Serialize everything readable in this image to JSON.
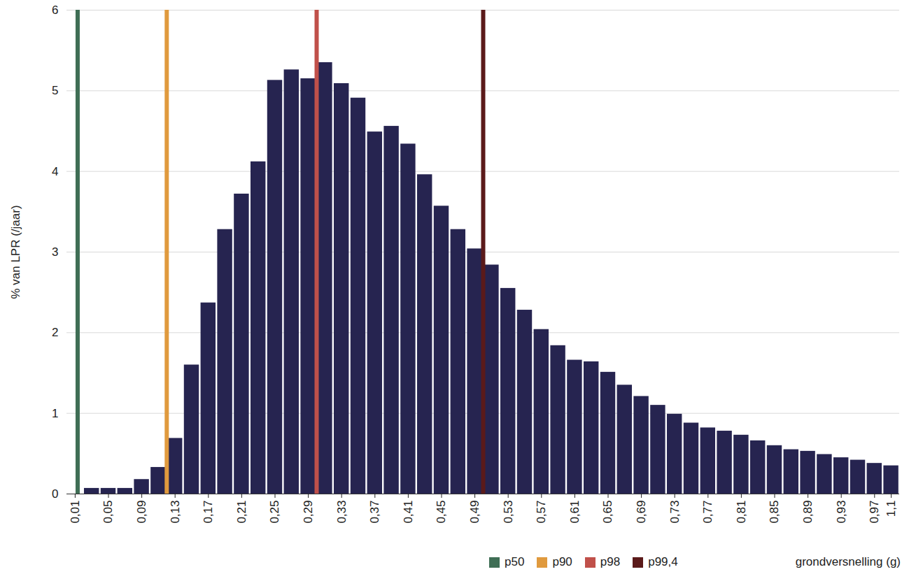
{
  "chart_data": {
    "type": "bar",
    "y_label": "% van LPR (/jaar)",
    "x_label": "grondversnelling (g)",
    "categories": [
      "0,01",
      null,
      "0,05",
      null,
      "0,09",
      null,
      "0,13",
      null,
      "0,17",
      null,
      "0,21",
      null,
      "0,25",
      null,
      "0,29",
      null,
      "0,33",
      null,
      "0,37",
      null,
      "0,41",
      null,
      "0,45",
      null,
      "0,49",
      null,
      "0,53",
      null,
      "0,57",
      null,
      "0,61",
      null,
      "0,65",
      null,
      "0,69",
      null,
      "0,73",
      null,
      "0,77",
      null,
      "0,81",
      null,
      "0,85",
      null,
      "0,89",
      null,
      "0,93",
      null,
      "0,97",
      "1,1"
    ],
    "bins": [
      0,
      0.02,
      0.04,
      0.06,
      0.08,
      0.1,
      0.12,
      0.14,
      0.16,
      0.18,
      0.2,
      0.22,
      0.24,
      0.26,
      0.28,
      0.3,
      0.32,
      0.34,
      0.36,
      0.38,
      0.4,
      0.42,
      0.44,
      0.46,
      0.48,
      0.5,
      0.52,
      0.54,
      0.56,
      0.58,
      0.6,
      0.62,
      0.64,
      0.66,
      0.68,
      0.7,
      0.72,
      0.74,
      0.76,
      0.78,
      0.8,
      0.82,
      0.84,
      0.86,
      0.88,
      0.9,
      0.92,
      0.94,
      0.96,
      0.98,
      1.0
    ],
    "values": [
      0,
      0.07,
      0.07,
      0.07,
      0.18,
      0.33,
      0.69,
      1.6,
      2.37,
      3.28,
      3.72,
      4.12,
      5.13,
      5.26,
      5.15,
      5.35,
      5.09,
      4.91,
      4.49,
      4.56,
      4.34,
      3.96,
      3.57,
      3.28,
      3.04,
      2.84,
      2.55,
      2.28,
      2.04,
      1.84,
      1.66,
      1.64,
      1.51,
      1.35,
      1.21,
      1.1,
      0.99,
      0.88,
      0.82,
      0.78,
      0.73,
      0.66,
      0.6,
      0.55,
      0.53,
      0.49,
      0.45,
      0.42,
      0.38,
      0.35
    ],
    "color": "#262450",
    "reference_lines": [
      {
        "name": "p50",
        "color": "#3f6e55",
        "x": 0.013
      },
      {
        "name": "p90",
        "color": "#e09a3e",
        "x": 0.12
      },
      {
        "name": "p98",
        "color": "#c0504a",
        "x": 0.3
      },
      {
        "name": "p99,4",
        "color": "#5b1a1a",
        "x": 0.5
      }
    ],
    "ylim": [
      0,
      6
    ],
    "yticks": [
      0,
      1,
      2,
      3,
      4,
      5,
      6
    ],
    "grid": true,
    "legend": "bottom"
  }
}
